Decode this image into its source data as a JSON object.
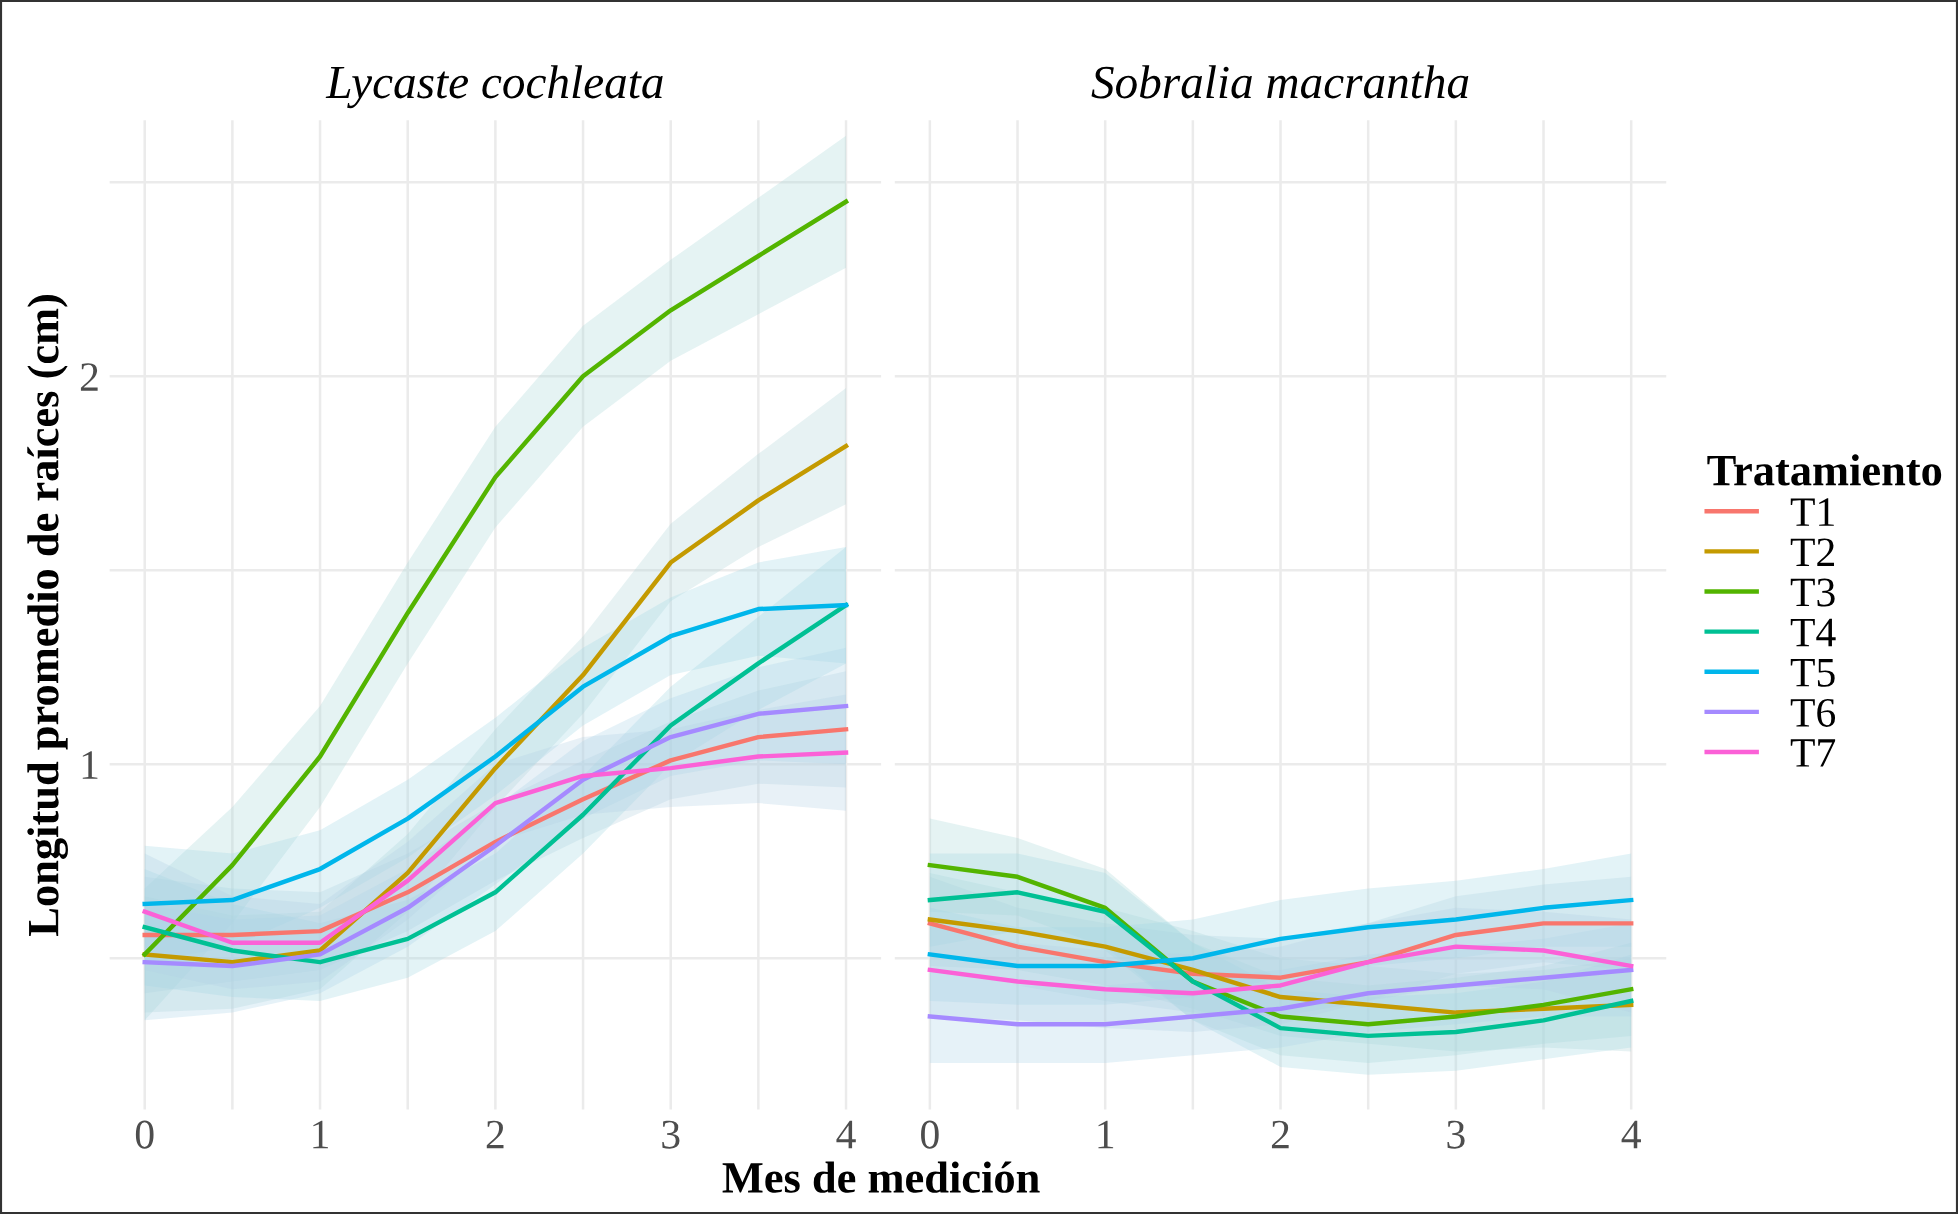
{
  "chart_data": [
    {
      "type": "line",
      "title": "Lycaste cochleata",
      "ylabel": "Longitud promedio de raíces (cm)",
      "xlabel": "Mes de medición",
      "x": [
        0,
        0.5,
        1,
        1.5,
        2,
        2.5,
        3,
        3.5,
        4
      ],
      "xlim": [
        -0.2,
        4.2
      ],
      "xticks": [
        0,
        {
          "value": 0.5,
          "label": null
        },
        1,
        {
          "value": 1.5,
          "label": null
        },
        2,
        {
          "value": 2.5,
          "label": null
        },
        3,
        {
          "value": 3.5,
          "label": null
        },
        4
      ],
      "ylim": [
        0.11,
        2.66
      ],
      "yticks": [
        {
          "value": 0.5,
          "label": null
        },
        1,
        {
          "value": 1.5,
          "label": null
        },
        2,
        {
          "value": 2.5,
          "label": null
        }
      ],
      "grid": true,
      "legend": "right",
      "line_style": "solid",
      "marker": "none",
      "series": [
        {
          "name": "T1",
          "color": "#f8766d",
          "values": [
            0.56,
            0.56,
            0.57,
            0.67,
            0.8,
            0.91,
            1.01,
            1.07,
            1.09
          ],
          "lower": [
            0.41,
            0.44,
            0.47,
            0.57,
            0.7,
            0.81,
            0.91,
            0.95,
            0.94
          ],
          "upper": [
            0.71,
            0.68,
            0.67,
            0.77,
            0.9,
            1.01,
            1.11,
            1.19,
            1.24
          ]
        },
        {
          "name": "T2",
          "color": "#c49a00",
          "values": [
            0.51,
            0.49,
            0.52,
            0.72,
            0.99,
            1.23,
            1.52,
            1.68,
            1.82
          ],
          "lower": [
            0.36,
            0.37,
            0.42,
            0.62,
            0.89,
            1.13,
            1.42,
            1.56,
            1.67
          ],
          "upper": [
            0.66,
            0.61,
            0.62,
            0.82,
            1.09,
            1.33,
            1.62,
            1.8,
            1.97
          ]
        },
        {
          "name": "T3",
          "color": "#53b400",
          "values": [
            0.51,
            0.74,
            1.02,
            1.39,
            1.74,
            2.0,
            2.17,
            2.31,
            2.45
          ],
          "lower": [
            0.34,
            0.59,
            0.89,
            1.26,
            1.61,
            1.87,
            2.04,
            2.16,
            2.28
          ],
          "upper": [
            0.68,
            0.89,
            1.15,
            1.52,
            1.87,
            2.13,
            2.3,
            2.46,
            2.62
          ]
        },
        {
          "name": "T4",
          "color": "#00c094",
          "values": [
            0.58,
            0.52,
            0.49,
            0.55,
            0.67,
            0.87,
            1.1,
            1.26,
            1.41
          ],
          "lower": [
            0.43,
            0.4,
            0.39,
            0.45,
            0.57,
            0.77,
            1.0,
            1.14,
            1.26
          ],
          "upper": [
            0.73,
            0.64,
            0.59,
            0.65,
            0.77,
            0.97,
            1.2,
            1.38,
            1.56
          ]
        },
        {
          "name": "T5",
          "color": "#00b6eb",
          "values": [
            0.64,
            0.65,
            0.73,
            0.86,
            1.02,
            1.2,
            1.33,
            1.4,
            1.41
          ],
          "lower": [
            0.49,
            0.53,
            0.63,
            0.76,
            0.92,
            1.1,
            1.23,
            1.28,
            1.26
          ],
          "upper": [
            0.79,
            0.77,
            0.83,
            0.96,
            1.12,
            1.3,
            1.43,
            1.52,
            1.56
          ]
        },
        {
          "name": "T6",
          "color": "#a58aff",
          "values": [
            0.49,
            0.48,
            0.51,
            0.63,
            0.79,
            0.96,
            1.07,
            1.13,
            1.15
          ],
          "lower": [
            0.34,
            0.36,
            0.41,
            0.53,
            0.69,
            0.86,
            0.97,
            1.01,
            1.0
          ],
          "upper": [
            0.64,
            0.6,
            0.61,
            0.73,
            0.89,
            1.06,
            1.17,
            1.25,
            1.3
          ]
        },
        {
          "name": "T7",
          "color": "#fb61d7",
          "values": [
            0.62,
            0.54,
            0.54,
            0.7,
            0.9,
            0.97,
            0.99,
            1.02,
            1.03
          ],
          "lower": [
            0.47,
            0.42,
            0.44,
            0.6,
            0.8,
            0.87,
            0.89,
            0.9,
            0.88
          ],
          "upper": [
            0.77,
            0.66,
            0.64,
            0.8,
            1.0,
            1.07,
            1.09,
            1.14,
            1.18
          ]
        }
      ]
    },
    {
      "type": "line",
      "title": "Sobralia macrantha",
      "legend_title": "Tratamiento",
      "x": [
        0,
        0.5,
        1,
        1.5,
        2,
        2.5,
        3,
        3.5,
        4
      ],
      "xlim": [
        -0.2,
        4.2
      ],
      "xticks": [
        0,
        {
          "value": 0.5,
          "label": null
        },
        1,
        {
          "value": 1.5,
          "label": null
        },
        2,
        {
          "value": 2.5,
          "label": null
        },
        3,
        {
          "value": 3.5,
          "label": null
        },
        4
      ],
      "ylim": [
        0.11,
        2.66
      ],
      "yticks": [
        {
          "value": 0.5,
          "label": null
        },
        1,
        {
          "value": 1.5,
          "label": null
        },
        2,
        {
          "value": 2.5,
          "label": null
        }
      ],
      "tick_labels": "x",
      "grid": true,
      "legend": "right",
      "line_style": "solid",
      "marker": "none",
      "series": [
        {
          "name": "T1",
          "color": "#f8766d",
          "values": [
            0.59,
            0.53,
            0.49,
            0.46,
            0.45,
            0.49,
            0.56,
            0.59,
            0.59
          ],
          "lower": [
            0.47,
            0.43,
            0.39,
            0.36,
            0.35,
            0.39,
            0.46,
            0.49,
            0.47
          ],
          "upper": [
            0.71,
            0.63,
            0.59,
            0.56,
            0.55,
            0.59,
            0.66,
            0.69,
            0.71
          ]
        },
        {
          "name": "T2",
          "color": "#c49a00",
          "values": [
            0.6,
            0.57,
            0.53,
            0.47,
            0.4,
            0.38,
            0.36,
            0.37,
            0.38
          ],
          "lower": [
            0.48,
            0.47,
            0.43,
            0.37,
            0.3,
            0.28,
            0.26,
            0.27,
            0.26
          ],
          "upper": [
            0.72,
            0.67,
            0.63,
            0.57,
            0.5,
            0.48,
            0.46,
            0.47,
            0.5
          ]
        },
        {
          "name": "T3",
          "color": "#53b400",
          "values": [
            0.74,
            0.71,
            0.63,
            0.44,
            0.35,
            0.33,
            0.35,
            0.38,
            0.42
          ],
          "lower": [
            0.62,
            0.61,
            0.53,
            0.34,
            0.25,
            0.23,
            0.25,
            0.28,
            0.3
          ],
          "upper": [
            0.86,
            0.81,
            0.73,
            0.54,
            0.45,
            0.43,
            0.45,
            0.48,
            0.54
          ]
        },
        {
          "name": "T4",
          "color": "#00c094",
          "values": [
            0.65,
            0.67,
            0.62,
            0.44,
            0.32,
            0.3,
            0.31,
            0.34,
            0.39
          ],
          "lower": [
            0.53,
            0.57,
            0.52,
            0.34,
            0.22,
            0.2,
            0.21,
            0.24,
            0.27
          ],
          "upper": [
            0.77,
            0.77,
            0.72,
            0.54,
            0.42,
            0.4,
            0.41,
            0.44,
            0.51
          ]
        },
        {
          "name": "T5",
          "color": "#00b6eb",
          "values": [
            0.51,
            0.48,
            0.48,
            0.5,
            0.55,
            0.58,
            0.6,
            0.63,
            0.65
          ],
          "lower": [
            0.39,
            0.38,
            0.38,
            0.4,
            0.45,
            0.48,
            0.5,
            0.53,
            0.53
          ],
          "upper": [
            0.63,
            0.58,
            0.58,
            0.6,
            0.65,
            0.68,
            0.7,
            0.73,
            0.77
          ]
        },
        {
          "name": "T6",
          "color": "#a58aff",
          "values": [
            0.35,
            0.33,
            0.33,
            0.35,
            0.37,
            0.41,
            0.43,
            0.45,
            0.47
          ],
          "lower": [
            0.23,
            0.23,
            0.23,
            0.25,
            0.27,
            0.31,
            0.33,
            0.35,
            0.35
          ],
          "upper": [
            0.47,
            0.43,
            0.43,
            0.45,
            0.47,
            0.51,
            0.53,
            0.55,
            0.59
          ]
        },
        {
          "name": "T7",
          "color": "#fb61d7",
          "values": [
            0.47,
            0.44,
            0.42,
            0.41,
            0.43,
            0.49,
            0.53,
            0.52,
            0.48
          ],
          "lower": [
            0.35,
            0.34,
            0.32,
            0.31,
            0.33,
            0.39,
            0.43,
            0.42,
            0.36
          ],
          "upper": [
            0.59,
            0.54,
            0.52,
            0.51,
            0.53,
            0.59,
            0.63,
            0.62,
            0.6
          ]
        }
      ]
    }
  ]
}
